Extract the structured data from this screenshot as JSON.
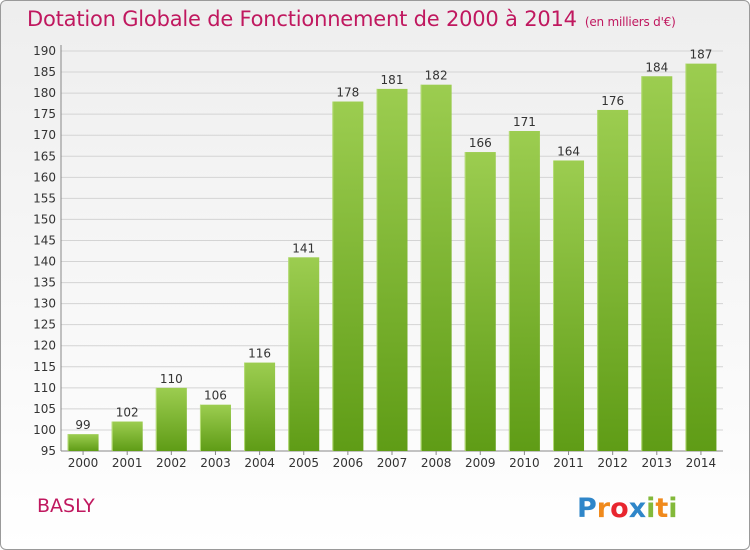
{
  "header": {
    "title": "Dotation Globale de Fonctionnement de 2000 à 2014",
    "unit": "(en milliers d'€)"
  },
  "footer": {
    "commune": "BASLY",
    "logo_text": "Proxiti"
  },
  "colors": {
    "title": "#c0185f",
    "bar_top": "#9ccd50",
    "bar_bottom": "#5f9c16",
    "grid": "#d4d4d4"
  },
  "chart_data": {
    "type": "bar",
    "title": "Dotation Globale de Fonctionnement de 2000 à 2014",
    "subtitle": "(en milliers d'€)",
    "xlabel": "",
    "ylabel": "",
    "categories": [
      "2000",
      "2001",
      "2002",
      "2003",
      "2004",
      "2005",
      "2006",
      "2007",
      "2008",
      "2009",
      "2010",
      "2011",
      "2012",
      "2013",
      "2014"
    ],
    "values": [
      99,
      102,
      110,
      106,
      116,
      141,
      178,
      181,
      182,
      166,
      171,
      164,
      176,
      184,
      187
    ],
    "ylim": [
      95,
      190
    ],
    "yticks": [
      95,
      100,
      105,
      110,
      115,
      120,
      125,
      130,
      135,
      140,
      145,
      150,
      155,
      160,
      165,
      170,
      175,
      180,
      185,
      190
    ],
    "grid": true
  }
}
